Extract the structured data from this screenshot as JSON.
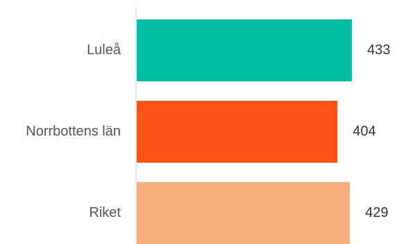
{
  "chart_data": {
    "type": "bar",
    "orientation": "horizontal",
    "categories": [
      "Luleå",
      "Norrbottens län",
      "Riket"
    ],
    "values": [
      433,
      404,
      429
    ],
    "colors": [
      "#00BFA5",
      "#FF5216",
      "#F5AD7D"
    ],
    "axis_color": "#DDDDDD",
    "xlim": [
      0,
      500
    ],
    "title": "",
    "xlabel": "",
    "ylabel": "",
    "grid": false,
    "legend": "none",
    "data_labels": [
      "433",
      "404",
      "429"
    ]
  }
}
